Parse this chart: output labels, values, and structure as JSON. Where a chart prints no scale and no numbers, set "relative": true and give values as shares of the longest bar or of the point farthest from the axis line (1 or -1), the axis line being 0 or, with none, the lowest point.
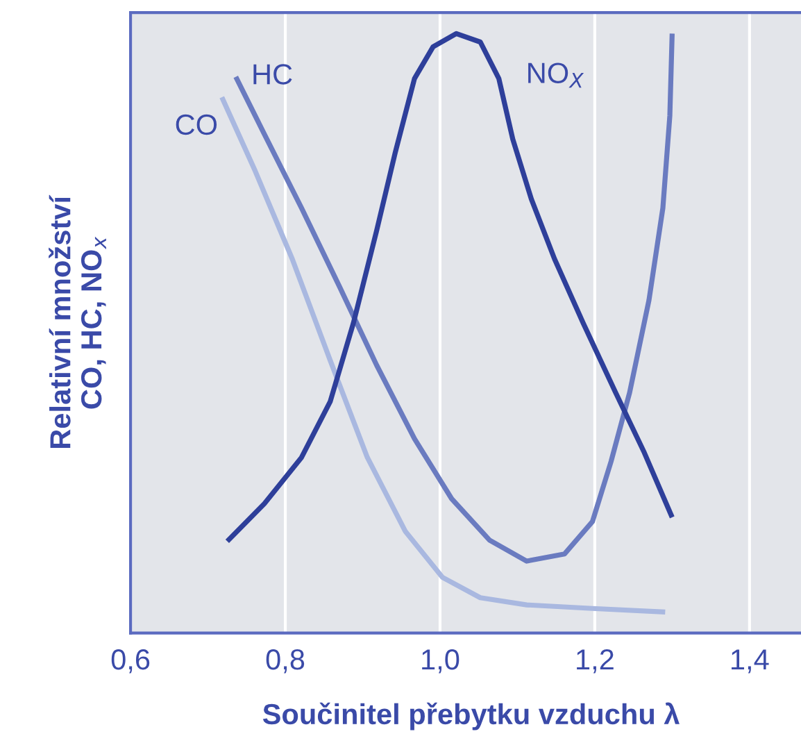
{
  "chart_data": {
    "type": "line",
    "relative": true,
    "xlabel": "Součinitel přebytku vzduchu λ",
    "ylabel": "Relativní množství\nCO, HC, NO$_{x}$",
    "xlim": [
      0.6,
      1.48
    ],
    "xticks": [
      {
        "value": 0.6,
        "label": "0,6"
      },
      {
        "value": 0.8,
        "label": "0,8"
      },
      {
        "value": 1.0,
        "label": "1,0"
      },
      {
        "value": 1.2,
        "label": "1,2"
      },
      {
        "value": 1.4,
        "label": "1,4"
      }
    ],
    "grid": "x",
    "legend": false,
    "marker": "none",
    "line_style": "solid",
    "series": [
      {
        "name": "CO",
        "color": "#a9b8e0",
        "x": [
          0.718,
          0.761,
          0.809,
          0.858,
          0.906,
          0.955,
          1.003,
          1.052,
          1.112,
          1.197,
          1.291
        ],
        "values": [
          0.894,
          0.771,
          0.624,
          0.455,
          0.293,
          0.17,
          0.093,
          0.059,
          0.047,
          0.041,
          0.035
        ]
      },
      {
        "name": "HC",
        "color": "#6a7bc0",
        "x": [
          0.736,
          0.773,
          0.821,
          0.87,
          0.918,
          0.967,
          1.015,
          1.064,
          1.112,
          1.161,
          1.197,
          1.221,
          1.245,
          1.27,
          1.288,
          1.297,
          1.3
        ],
        "values": [
          0.928,
          0.832,
          0.709,
          0.578,
          0.447,
          0.324,
          0.224,
          0.155,
          0.12,
          0.132,
          0.186,
          0.286,
          0.401,
          0.555,
          0.709,
          0.863,
          1.0
        ]
      },
      {
        "name": "NO$_{X}$",
        "color": "#2e3f9a",
        "x": [
          0.725,
          0.773,
          0.821,
          0.858,
          0.888,
          0.918,
          0.942,
          0.967,
          0.991,
          1.021,
          1.052,
          1.076,
          1.094,
          1.118,
          1.148,
          1.185,
          1.227,
          1.264,
          1.3
        ],
        "values": [
          0.153,
          0.216,
          0.293,
          0.386,
          0.517,
          0.671,
          0.801,
          0.925,
          0.978,
          1.0,
          0.986,
          0.925,
          0.824,
          0.724,
          0.624,
          0.517,
          0.401,
          0.301,
          0.193
        ]
      }
    ]
  }
}
